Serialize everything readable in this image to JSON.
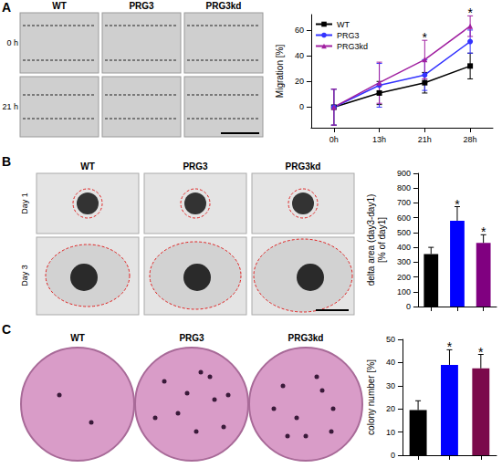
{
  "images": [
    {
      "letter": "A",
      "columns": [
        "WT",
        "PRG3",
        "PRG3kd"
      ],
      "rows": [
        "0 h",
        "21 h"
      ]
    },
    {
      "letter": "B",
      "columns": [
        "WT",
        "PRG3",
        "PRG3kd"
      ],
      "rows": [
        "Day 1",
        "Day 3"
      ]
    },
    {
      "letter": "C",
      "columns": [
        "WT",
        "PRG3",
        "PRG3kd"
      ]
    }
  ],
  "chart_data": [
    {
      "type": "line",
      "y_label": "Migration [%]",
      "categories": [
        "0h",
        "13h",
        "21h",
        "28h"
      ],
      "series": [
        {
          "name": "WT",
          "color": "#000000",
          "marker": "square",
          "values": [
            0,
            11,
            19,
            32
          ],
          "errors": [
            14,
            9,
            8,
            10
          ]
        },
        {
          "name": "PRG3",
          "color": "#3333ff",
          "marker": "circle",
          "values": [
            0,
            17,
            25,
            51
          ],
          "errors": [
            14,
            17,
            12,
            9
          ]
        },
        {
          "name": "PRG3kd",
          "color": "#a020a0",
          "marker": "triangle",
          "values": [
            0,
            19,
            37,
            63
          ],
          "errors": [
            14,
            16,
            15,
            8
          ]
        }
      ],
      "ylim": [
        -16,
        72
      ],
      "yticks": [
        0,
        20,
        40,
        60
      ],
      "grid": false,
      "legend": "top-left",
      "significance": [
        null,
        null,
        "*",
        "*"
      ]
    },
    {
      "type": "bar",
      "y_label": "delta area (day3-day1)\n[% of day1]",
      "categories": [
        null,
        null,
        null
      ],
      "values": [
        355,
        580,
        430
      ],
      "errors": [
        45,
        95,
        55
      ],
      "colors": [
        "#000000",
        "#0000ff",
        "#800080"
      ],
      "ylim": [
        0,
        900
      ],
      "yticks": [
        0,
        100,
        200,
        300,
        400,
        500,
        600,
        700,
        800,
        900
      ],
      "grid": false,
      "significance": [
        null,
        "*",
        "*"
      ]
    },
    {
      "type": "bar",
      "y_label": "colony number [%]",
      "categories": [
        null,
        null,
        null
      ],
      "values": [
        19.5,
        39,
        37.5
      ],
      "errors": [
        4,
        6.5,
        6
      ],
      "colors": [
        "#000000",
        "#0000ff",
        "#7b0a4b"
      ],
      "ylim": [
        0,
        50
      ],
      "yticks": [
        0,
        10,
        20,
        30,
        40,
        50
      ],
      "grid": false,
      "significance": [
        null,
        "*",
        "*"
      ]
    }
  ]
}
